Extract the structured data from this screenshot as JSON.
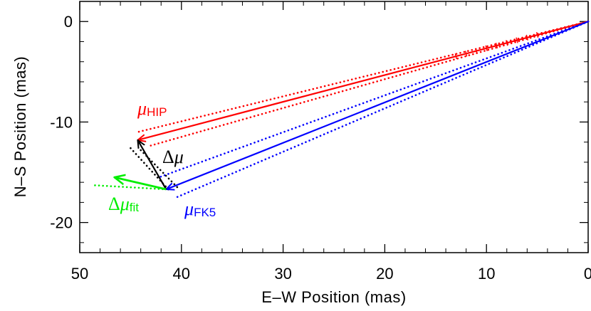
{
  "chart_data": {
    "type": "line",
    "xlabel": "E–W Position (mas)",
    "ylabel": "N–S Position (mas)",
    "xlim": [
      50,
      0
    ],
    "ylim": [
      -23,
      2
    ],
    "x_ticks": [
      50,
      40,
      30,
      20,
      10,
      0
    ],
    "y_ticks": [
      0,
      -10,
      -20
    ],
    "grid": false,
    "colors": {
      "hip": "#ff0000",
      "fk5": "#0000ff",
      "delta": "#000000",
      "fit": "#00ee00"
    },
    "vectors": [
      {
        "name": "mu_HIP",
        "color": "#ff0000",
        "from": [
          0,
          0
        ],
        "to": [
          44.3,
          -11.8
        ]
      },
      {
        "name": "mu_FK5",
        "color": "#0000ff",
        "from": [
          0,
          0
        ],
        "to": [
          41.5,
          -16.7
        ]
      },
      {
        "name": "delta_mu",
        "color": "#000000",
        "from": [
          41.5,
          -16.7
        ],
        "to": [
          44.3,
          -11.8
        ]
      },
      {
        "name": "delta_mu_fit",
        "color": "#00ee00",
        "from": [
          41.5,
          -16.7
        ],
        "to": [
          46.6,
          -15.5
        ]
      }
    ],
    "dotted_lines": [
      {
        "name": "hip-upper",
        "color": "#ff0000",
        "from": [
          0,
          0
        ],
        "to": [
          44.3,
          -11.0
        ]
      },
      {
        "name": "hip-lower",
        "color": "#ff0000",
        "from": [
          0,
          0
        ],
        "to": [
          43.2,
          -12.4
        ]
      },
      {
        "name": "fk5-upper",
        "color": "#0000ff",
        "from": [
          0,
          0
        ],
        "to": [
          42.2,
          -15.5
        ]
      },
      {
        "name": "fk5-lower",
        "color": "#0000ff",
        "from": [
          0,
          0
        ],
        "to": [
          40.5,
          -17.5
        ]
      },
      {
        "name": "delta-left",
        "color": "#000000",
        "from": [
          45.0,
          -12.6
        ],
        "to": [
          41.2,
          -16.8
        ]
      },
      {
        "name": "delta-right",
        "color": "#000000",
        "from": [
          44.0,
          -12.8
        ],
        "to": [
          40.3,
          -16.6
        ]
      },
      {
        "name": "fit-extension",
        "color": "#00ee00",
        "from": [
          48.5,
          -16.3
        ],
        "to": [
          41.5,
          -16.7
        ]
      }
    ],
    "hip_tick_marks_x": [
      5,
      6,
      7,
      8,
      9,
      10,
      11,
      12,
      13
    ],
    "annotations": {
      "mu_hip": {
        "symbol": "μ",
        "sub": "HIP"
      },
      "mu_fk5": {
        "symbol": "μ",
        "sub": "FK5"
      },
      "delta_mu": {
        "delta": "Δ",
        "symbol": "μ"
      },
      "delta_mu_fit": {
        "delta": "Δ",
        "symbol": "μ",
        "sub": "fit"
      }
    }
  }
}
